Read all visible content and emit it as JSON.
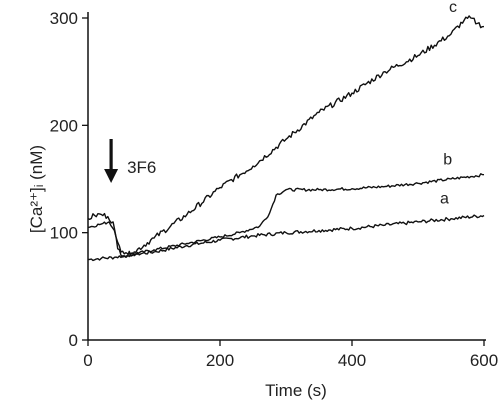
{
  "chart_data": {
    "type": "line",
    "xlabel": "Time (s)",
    "ylabel": "[Ca²⁺]ᵢ (nM)",
    "xlim": [
      0,
      600
    ],
    "ylim": [
      0,
      300
    ],
    "x_ticks": [
      "0",
      "200",
      "400",
      "600"
    ],
    "y_ticks": [
      "0",
      "100",
      "200",
      "300"
    ],
    "grid": false,
    "line_color": "#111111",
    "annotation": {
      "text": "3F6",
      "x": 35,
      "marker": "down-arrow"
    },
    "series": [
      {
        "name": "a",
        "x": [
          0,
          20,
          40,
          60,
          100,
          150,
          200,
          250,
          300,
          350,
          400,
          450,
          500,
          550,
          600
        ],
        "y": [
          75,
          76,
          77,
          79,
          82,
          88,
          93,
          97,
          100,
          102,
          104,
          107,
          110,
          113,
          116
        ]
      },
      {
        "name": "b",
        "x": [
          0,
          20,
          32,
          40,
          50,
          70,
          100,
          150,
          200,
          230,
          260,
          275,
          285,
          300,
          350,
          400,
          450,
          500,
          550,
          600
        ],
        "y": [
          105,
          108,
          110,
          102,
          82,
          80,
          84,
          90,
          96,
          100,
          106,
          118,
          135,
          140,
          140,
          141,
          143,
          146,
          150,
          154
        ]
      },
      {
        "name": "c",
        "x": [
          0,
          10,
          20,
          30,
          38,
          45,
          55,
          70,
          100,
          150,
          200,
          250,
          300,
          350,
          400,
          450,
          500,
          550,
          570,
          580,
          590,
          600
        ],
        "y": [
          113,
          116,
          117,
          115,
          110,
          85,
          78,
          82,
          95,
          117,
          142,
          162,
          187,
          212,
          230,
          250,
          265,
          285,
          298,
          300,
          295,
          292
        ]
      }
    ]
  }
}
